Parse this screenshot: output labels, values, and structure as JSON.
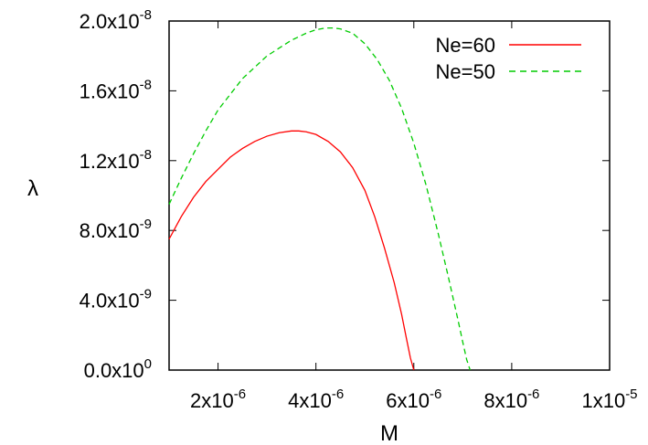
{
  "chart_data": {
    "type": "line",
    "xlabel": "M",
    "ylabel": "λ",
    "xlim": [
      1e-06,
      1e-05
    ],
    "ylim": [
      0,
      2e-08
    ],
    "x_ticks": [
      {
        "mant": "2x10",
        "exp": "-6",
        "value": 2e-06
      },
      {
        "mant": "4x10",
        "exp": "-6",
        "value": 4e-06
      },
      {
        "mant": "6x10",
        "exp": "-6",
        "value": 6e-06
      },
      {
        "mant": "8x10",
        "exp": "-6",
        "value": 8e-06
      },
      {
        "mant": "1x10",
        "exp": "-5",
        "value": 1e-05
      }
    ],
    "y_ticks": [
      {
        "mant": "0.0x10",
        "exp": "0",
        "value": 0
      },
      {
        "mant": "4.0x10",
        "exp": "-9",
        "value": 4e-09
      },
      {
        "mant": "8.0x10",
        "exp": "-9",
        "value": 8e-09
      },
      {
        "mant": "1.2x10",
        "exp": "-8",
        "value": 1.2e-08
      },
      {
        "mant": "1.6x10",
        "exp": "-8",
        "value": 1.6e-08
      },
      {
        "mant": "2.0x10",
        "exp": "-8",
        "value": 2e-08
      }
    ],
    "grid": false,
    "legend_position": "top-right",
    "series": [
      {
        "name": "Ne=60",
        "color": "#ff0000",
        "dash": "solid",
        "x": [
          1e-06,
          1.25e-06,
          1.5e-06,
          1.75e-06,
          2e-06,
          2.25e-06,
          2.5e-06,
          2.75e-06,
          3e-06,
          3.25e-06,
          3.5e-06,
          3.65e-06,
          3.8e-06,
          4e-06,
          4.25e-06,
          4.5e-06,
          4.75e-06,
          5e-06,
          5.2e-06,
          5.4e-06,
          5.6e-06,
          5.75e-06,
          5.85e-06,
          5.93e-06,
          5.98e-06,
          6e-06
        ],
        "y": [
          7.5e-09,
          8.8e-09,
          9.9e-09,
          1.08e-08,
          1.15e-08,
          1.22e-08,
          1.27e-08,
          1.31e-08,
          1.34e-08,
          1.36e-08,
          1.37e-08,
          1.37e-08,
          1.365e-08,
          1.35e-08,
          1.31e-08,
          1.25e-08,
          1.16e-08,
          1.03e-08,
          8.8e-09,
          7e-09,
          5e-09,
          3.2e-09,
          1.8e-09,
          7e-10,
          2e-10,
          0.0
        ]
      },
      {
        "name": "Ne=50",
        "color": "#00cc00",
        "dash": "dashed",
        "x": [
          1e-06,
          1.25e-06,
          1.5e-06,
          1.75e-06,
          2e-06,
          2.5e-06,
          3e-06,
          3.5e-06,
          3.8e-06,
          4e-06,
          4.2e-06,
          4.35e-06,
          4.5e-06,
          4.75e-06,
          5e-06,
          5.25e-06,
          5.5e-06,
          5.75e-06,
          6e-06,
          6.25e-06,
          6.5e-06,
          6.7e-06,
          6.9e-06,
          7e-06,
          7.08e-06,
          7.15e-06
        ],
        "y": [
          9.5e-09,
          1.1e-08,
          1.24e-08,
          1.37e-08,
          1.49e-08,
          1.67e-08,
          1.8e-08,
          1.89e-08,
          1.93e-08,
          1.95e-08,
          1.96e-08,
          1.96e-08,
          1.955e-08,
          1.93e-08,
          1.87e-08,
          1.78e-08,
          1.66e-08,
          1.5e-08,
          1.3e-08,
          1.06e-08,
          7.8e-09,
          5.4e-09,
          2.9e-09,
          1.6e-09,
          6e-10,
          0.0
        ]
      }
    ]
  }
}
